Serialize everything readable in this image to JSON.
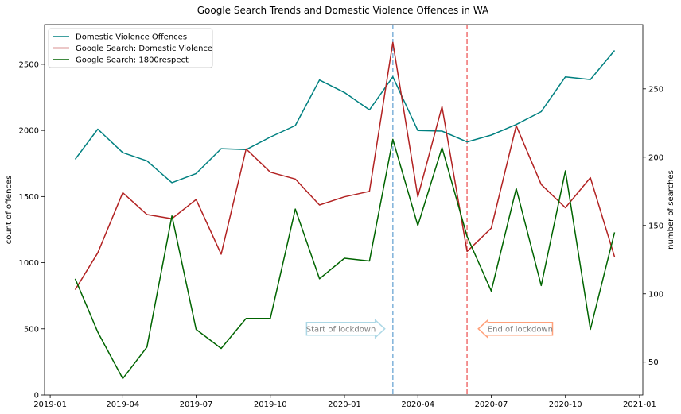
{
  "chart_data": {
    "type": "line",
    "title": "Google Search Trends and Domestic Violence Offences in WA",
    "ylabel": "count of offences",
    "y2label": "number of searches",
    "x": [
      "2019-02-01",
      "2019-03-01",
      "2019-04-01",
      "2019-05-01",
      "2019-06-01",
      "2019-07-01",
      "2019-08-01",
      "2019-09-01",
      "2019-10-01",
      "2019-11-01",
      "2019-12-01",
      "2020-01-01",
      "2020-02-01",
      "2020-03-01",
      "2020-04-01",
      "2020-05-01",
      "2020-06-01",
      "2020-07-01",
      "2020-08-01",
      "2020-09-01",
      "2020-10-01",
      "2020-11-01",
      "2020-12-01"
    ],
    "xlim": [
      "2018-12-25",
      "2021-01-05"
    ],
    "xticks": [
      "2019-01",
      "2019-04",
      "2019-07",
      "2019-10",
      "2020-01",
      "2020-04",
      "2020-07",
      "2020-10",
      "2021-01"
    ],
    "ylim": [
      0,
      2800
    ],
    "yticks": [
      0,
      500,
      1000,
      1500,
      2000,
      2500
    ],
    "y2lim": [
      26,
      297
    ],
    "y2ticks": [
      50,
      100,
      150,
      200,
      250
    ],
    "legend_position": "upper-left",
    "series": [
      {
        "name": "Domestic Violence Offences",
        "axis": "left",
        "color": "#008080",
        "values": [
          1782,
          2010,
          1832,
          1770,
          1605,
          1674,
          1862,
          1855,
          1950,
          2037,
          2381,
          2287,
          2155,
          2405,
          1999,
          1995,
          1913,
          1965,
          2045,
          2142,
          2405,
          2385,
          2605
        ]
      },
      {
        "name": "Google Search: Domestic Violence",
        "axis": "right",
        "color": "#b22222",
        "values": [
          103,
          130,
          174,
          158,
          155,
          169,
          129,
          206,
          189,
          184,
          165,
          171,
          175,
          284,
          171,
          237,
          131,
          148,
          223,
          180,
          163,
          185,
          127
        ]
      },
      {
        "name": "Google Search: 1800respect",
        "axis": "right",
        "color": "#006400",
        "values": [
          111,
          72,
          38,
          61,
          157,
          74,
          60,
          82,
          82,
          162,
          111,
          126,
          124,
          213,
          150,
          207,
          142,
          102,
          177,
          106,
          190,
          74,
          145
        ]
      }
    ],
    "vlines": [
      {
        "x": "2020-03-01",
        "color": "#7fb2d9"
      },
      {
        "x": "2020-06-01",
        "color": "#f07070"
      }
    ],
    "annotations": [
      {
        "text": "Start of lockdown",
        "direction": "right",
        "color": "#add8e6",
        "x_start": "2019-11-15",
        "x_end": "2020-02-20",
        "y": 500
      },
      {
        "text": "End of lockdown",
        "direction": "left",
        "color": "#ffa07a",
        "x_start": "2020-09-15",
        "x_end": "2020-06-15",
        "y": 500
      }
    ],
    "grid": false
  }
}
